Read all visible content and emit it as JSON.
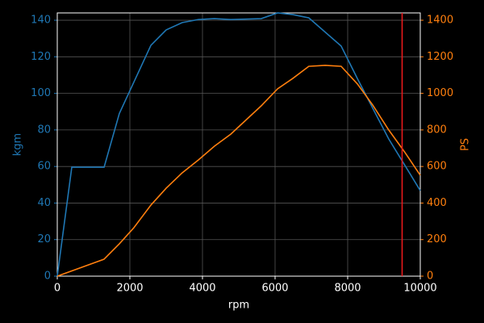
{
  "chart_data": {
    "type": "line",
    "x_label": "rpm",
    "y_label": "kgm",
    "y2_label": "PS",
    "xlim": [
      0,
      10000
    ],
    "xticks": [
      0,
      2000,
      4000,
      6000,
      8000,
      10000
    ],
    "ylim": [
      0,
      144
    ],
    "yticks": [
      0,
      20,
      40,
      60,
      80,
      100,
      120,
      140
    ],
    "y2lim": [
      0,
      1440
    ],
    "y2ticks": [
      0,
      200,
      400,
      600,
      800,
      1000,
      1200,
      1400
    ],
    "grid": true,
    "vline": {
      "x": 9500,
      "color": "#e8191b"
    },
    "series": [
      {
        "name": "kgm",
        "color": "#1f77b4",
        "axis": "y",
        "x": [
          0,
          400,
          1290,
          1710,
          2580,
          3000,
          3440,
          3890,
          4330,
          4780,
          5620,
          6070,
          6490,
          6930,
          7820,
          8270,
          8690,
          9130,
          9580,
          10000
        ],
        "values": [
          0,
          59.6,
          59.6,
          89,
          126.3,
          134.7,
          138.7,
          140.4,
          140.9,
          140.4,
          140.9,
          144,
          143.1,
          141.3,
          125.9,
          108,
          91.9,
          75.1,
          60.5,
          46.8
        ]
      },
      {
        "name": "PS",
        "color": "#ff7f0e",
        "axis": "y2",
        "x": [
          0,
          1290,
          1710,
          2110,
          2580,
          3000,
          3440,
          3890,
          4330,
          4780,
          5620,
          6070,
          6490,
          6930,
          7380,
          7820,
          8270,
          8690,
          9130,
          9580,
          10000
        ],
        "values": [
          0,
          92.8,
          177,
          265,
          389,
          481,
          565,
          636,
          711,
          777,
          932,
          1025,
          1082,
          1148,
          1153,
          1148,
          1051,
          936,
          800,
          676,
          552
        ]
      }
    ]
  }
}
